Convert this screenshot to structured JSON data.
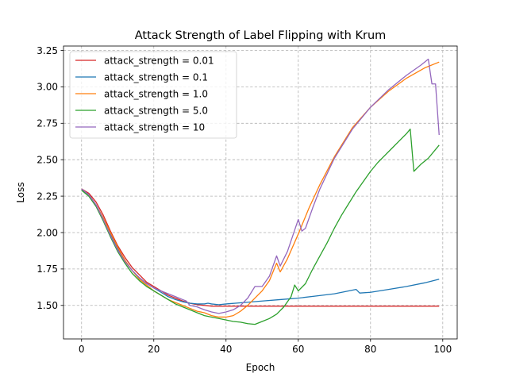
{
  "chart_data": {
    "type": "line",
    "title": "Attack Strength of Label Flipping with Krum",
    "xlabel": "Epoch",
    "ylabel": "Loss",
    "xlim": [
      -5,
      104
    ],
    "ylim": [
      1.27,
      3.28
    ],
    "xticks": [
      0,
      20,
      40,
      60,
      80,
      100
    ],
    "xtick_labels": [
      "0",
      "20",
      "40",
      "60",
      "80",
      "100"
    ],
    "yticks": [
      1.5,
      1.75,
      2.0,
      2.25,
      2.5,
      2.75,
      3.0,
      3.25
    ],
    "ytick_labels": [
      "1.50",
      "1.75",
      "2.00",
      "2.25",
      "2.50",
      "2.75",
      "3.00",
      "3.25"
    ],
    "grid": true,
    "legend_position": "upper-left",
    "series": [
      {
        "name": "attack_strength = 0.01",
        "color": "#d62728",
        "points": [
          [
            0,
            2.3
          ],
          [
            2,
            2.27
          ],
          [
            4,
            2.21
          ],
          [
            6,
            2.12
          ],
          [
            8,
            2.01
          ],
          [
            10,
            1.91
          ],
          [
            12,
            1.83
          ],
          [
            14,
            1.76
          ],
          [
            16,
            1.71
          ],
          [
            18,
            1.66
          ],
          [
            20,
            1.63
          ],
          [
            22,
            1.6
          ],
          [
            24,
            1.57
          ],
          [
            26,
            1.55
          ],
          [
            28,
            1.53
          ],
          [
            30,
            1.515
          ],
          [
            32,
            1.505
          ],
          [
            34,
            1.5
          ],
          [
            36,
            1.495
          ],
          [
            40,
            1.495
          ],
          [
            50,
            1.495
          ],
          [
            60,
            1.495
          ],
          [
            70,
            1.495
          ],
          [
            80,
            1.495
          ],
          [
            90,
            1.495
          ],
          [
            99,
            1.495
          ]
        ]
      },
      {
        "name": "attack_strength = 0.1",
        "color": "#1f77b4",
        "points": [
          [
            0,
            2.29
          ],
          [
            2,
            2.26
          ],
          [
            4,
            2.19
          ],
          [
            6,
            2.1
          ],
          [
            8,
            1.99
          ],
          [
            10,
            1.89
          ],
          [
            12,
            1.81
          ],
          [
            14,
            1.74
          ],
          [
            16,
            1.69
          ],
          [
            18,
            1.65
          ],
          [
            20,
            1.62
          ],
          [
            22,
            1.59
          ],
          [
            24,
            1.56
          ],
          [
            26,
            1.54
          ],
          [
            28,
            1.525
          ],
          [
            30,
            1.515
          ],
          [
            32,
            1.51
          ],
          [
            34,
            1.51
          ],
          [
            35,
            1.515
          ],
          [
            36,
            1.51
          ],
          [
            38,
            1.505
          ],
          [
            40,
            1.51
          ],
          [
            45,
            1.52
          ],
          [
            50,
            1.53
          ],
          [
            55,
            1.54
          ],
          [
            60,
            1.55
          ],
          [
            65,
            1.565
          ],
          [
            70,
            1.58
          ],
          [
            76,
            1.61
          ],
          [
            77,
            1.585
          ],
          [
            80,
            1.59
          ],
          [
            85,
            1.61
          ],
          [
            90,
            1.63
          ],
          [
            95,
            1.655
          ],
          [
            99,
            1.68
          ]
        ]
      },
      {
        "name": "attack_strength = 1.0",
        "color": "#ff7f0e",
        "points": [
          [
            0,
            2.3
          ],
          [
            2,
            2.26
          ],
          [
            4,
            2.19
          ],
          [
            6,
            2.1
          ],
          [
            8,
            2.0
          ],
          [
            10,
            1.9
          ],
          [
            12,
            1.81
          ],
          [
            14,
            1.74
          ],
          [
            16,
            1.68
          ],
          [
            18,
            1.64
          ],
          [
            20,
            1.6
          ],
          [
            22,
            1.57
          ],
          [
            24,
            1.54
          ],
          [
            26,
            1.52
          ],
          [
            28,
            1.5
          ],
          [
            30,
            1.48
          ],
          [
            32,
            1.46
          ],
          [
            34,
            1.45
          ],
          [
            36,
            1.43
          ],
          [
            38,
            1.42
          ],
          [
            40,
            1.42
          ],
          [
            42,
            1.43
          ],
          [
            44,
            1.46
          ],
          [
            46,
            1.5
          ],
          [
            48,
            1.55
          ],
          [
            50,
            1.6
          ],
          [
            52,
            1.67
          ],
          [
            54,
            1.79
          ],
          [
            55,
            1.73
          ],
          [
            57,
            1.82
          ],
          [
            60,
            1.99
          ],
          [
            63,
            2.17
          ],
          [
            66,
            2.33
          ],
          [
            70,
            2.52
          ],
          [
            75,
            2.72
          ],
          [
            80,
            2.86
          ],
          [
            85,
            2.97
          ],
          [
            90,
            3.06
          ],
          [
            95,
            3.13
          ],
          [
            99,
            3.17
          ]
        ]
      },
      {
        "name": "attack_strength = 5.0",
        "color": "#2ca02c",
        "points": [
          [
            0,
            2.29
          ],
          [
            2,
            2.25
          ],
          [
            4,
            2.18
          ],
          [
            6,
            2.08
          ],
          [
            8,
            1.97
          ],
          [
            10,
            1.87
          ],
          [
            12,
            1.79
          ],
          [
            14,
            1.72
          ],
          [
            16,
            1.67
          ],
          [
            18,
            1.63
          ],
          [
            20,
            1.6
          ],
          [
            22,
            1.57
          ],
          [
            24,
            1.54
          ],
          [
            26,
            1.51
          ],
          [
            28,
            1.49
          ],
          [
            30,
            1.47
          ],
          [
            32,
            1.45
          ],
          [
            34,
            1.43
          ],
          [
            36,
            1.42
          ],
          [
            38,
            1.41
          ],
          [
            40,
            1.4
          ],
          [
            42,
            1.39
          ],
          [
            44,
            1.385
          ],
          [
            46,
            1.375
          ],
          [
            48,
            1.37
          ],
          [
            50,
            1.39
          ],
          [
            52,
            1.41
          ],
          [
            54,
            1.44
          ],
          [
            56,
            1.49
          ],
          [
            58,
            1.56
          ],
          [
            59,
            1.64
          ],
          [
            60,
            1.6
          ],
          [
            62,
            1.65
          ],
          [
            64,
            1.75
          ],
          [
            66,
            1.84
          ],
          [
            68,
            1.93
          ],
          [
            70,
            2.03
          ],
          [
            72,
            2.12
          ],
          [
            74,
            2.2
          ],
          [
            76,
            2.28
          ],
          [
            78,
            2.35
          ],
          [
            80,
            2.42
          ],
          [
            82,
            2.48
          ],
          [
            84,
            2.53
          ],
          [
            86,
            2.58
          ],
          [
            88,
            2.63
          ],
          [
            90,
            2.68
          ],
          [
            91,
            2.71
          ],
          [
            92,
            2.42
          ],
          [
            94,
            2.47
          ],
          [
            96,
            2.51
          ],
          [
            99,
            2.6
          ]
        ]
      },
      {
        "name": "attack_strength = 10",
        "color": "#9467bd",
        "points": [
          [
            0,
            2.3
          ],
          [
            2,
            2.26
          ],
          [
            4,
            2.19
          ],
          [
            6,
            2.09
          ],
          [
            8,
            1.98
          ],
          [
            10,
            1.88
          ],
          [
            12,
            1.8
          ],
          [
            14,
            1.74
          ],
          [
            16,
            1.69
          ],
          [
            18,
            1.65
          ],
          [
            20,
            1.62
          ],
          [
            22,
            1.6
          ],
          [
            24,
            1.58
          ],
          [
            26,
            1.56
          ],
          [
            28,
            1.54
          ],
          [
            29,
            1.53
          ],
          [
            30,
            1.5
          ],
          [
            32,
            1.49
          ],
          [
            34,
            1.47
          ],
          [
            36,
            1.455
          ],
          [
            38,
            1.445
          ],
          [
            40,
            1.455
          ],
          [
            42,
            1.47
          ],
          [
            44,
            1.5
          ],
          [
            46,
            1.55
          ],
          [
            48,
            1.63
          ],
          [
            50,
            1.63
          ],
          [
            52,
            1.7
          ],
          [
            54,
            1.84
          ],
          [
            55,
            1.77
          ],
          [
            57,
            1.87
          ],
          [
            60,
            2.09
          ],
          [
            61,
            2.01
          ],
          [
            62,
            2.03
          ],
          [
            64,
            2.17
          ],
          [
            66,
            2.3
          ],
          [
            70,
            2.51
          ],
          [
            75,
            2.71
          ],
          [
            80,
            2.86
          ],
          [
            85,
            2.98
          ],
          [
            90,
            3.08
          ],
          [
            94,
            3.15
          ],
          [
            96,
            3.19
          ],
          [
            97,
            3.02
          ],
          [
            98,
            3.02
          ],
          [
            99,
            2.67
          ]
        ]
      }
    ]
  }
}
